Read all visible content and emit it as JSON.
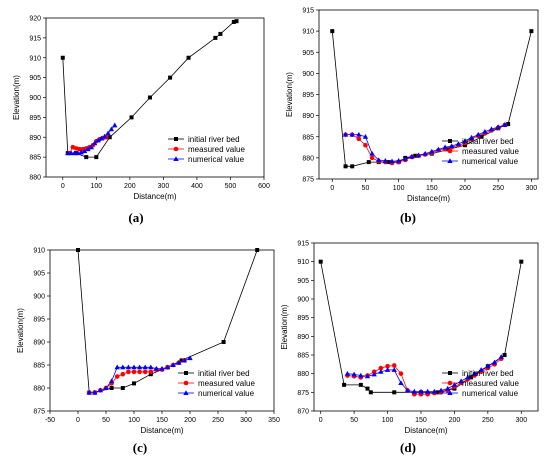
{
  "chart_data": [
    {
      "type": "line",
      "panel_label": "(a)",
      "xlabel": "Distance(m)",
      "ylabel": "Elevation(m)",
      "xlim": [
        -50,
        600
      ],
      "ylim": [
        880,
        920
      ],
      "xticks": [
        0,
        100,
        200,
        300,
        400,
        500,
        600
      ],
      "yticks": [
        880,
        885,
        890,
        895,
        900,
        905,
        910,
        915,
        920
      ],
      "legend_position": "bottom-right",
      "series": [
        {
          "name": "initial river bed",
          "color": "#000000",
          "marker": "square",
          "x": [
            0,
            15,
            40,
            70,
            100,
            140,
            205,
            260,
            320,
            375,
            455,
            470,
            510,
            518
          ],
          "y": [
            910,
            886,
            886,
            885,
            885,
            890,
            895,
            900,
            905,
            910,
            915,
            916,
            919,
            919.2
          ]
        },
        {
          "name": "measured value",
          "color": "#ff0000",
          "marker": "circle",
          "x": [
            20,
            30,
            40,
            50,
            60,
            70,
            80,
            90,
            100,
            110,
            120,
            130
          ],
          "y": [
            886,
            887.5,
            887.2,
            887,
            887,
            887.2,
            887.5,
            888,
            889,
            889.5,
            889.8,
            890
          ]
        },
        {
          "name": "numerical value",
          "color": "#0000ff",
          "marker": "triangle",
          "x": [
            15,
            25,
            35,
            45,
            55,
            65,
            75,
            85,
            95,
            105,
            115,
            125,
            135,
            145,
            155
          ],
          "y": [
            886,
            886,
            886,
            886,
            886.2,
            886.5,
            887,
            887.5,
            888.5,
            889.2,
            889.7,
            890.2,
            891,
            892,
            893
          ]
        }
      ]
    },
    {
      "type": "line",
      "panel_label": "(b)",
      "xlabel": "Distance(m)",
      "ylabel": "Elevation(m)",
      "xlim": [
        -20,
        310
      ],
      "ylim": [
        875,
        915
      ],
      "xticks": [
        0,
        50,
        100,
        150,
        200,
        250,
        300
      ],
      "yticks": [
        875,
        880,
        885,
        890,
        895,
        900,
        905,
        910,
        915
      ],
      "legend_position": "bottom-right",
      "series": [
        {
          "name": "initial river bed",
          "color": "#000000",
          "marker": "square",
          "x": [
            0,
            20,
            30,
            55,
            70,
            85,
            100,
            110,
            125,
            150,
            175,
            200,
            225,
            250,
            265,
            300
          ],
          "y": [
            910,
            878,
            878,
            879,
            879,
            879,
            879,
            880,
            880.5,
            881,
            882,
            883,
            885,
            887,
            888,
            910
          ]
        },
        {
          "name": "measured value",
          "color": "#ff0000",
          "marker": "circle",
          "x": [
            20,
            30,
            40,
            50,
            60,
            70,
            80,
            90,
            100,
            110,
            120,
            130,
            140,
            150,
            160,
            170,
            180,
            190,
            200,
            210,
            220,
            230,
            240,
            250,
            260
          ],
          "y": [
            885.5,
            885.5,
            884.5,
            883,
            880,
            879.2,
            879,
            878.8,
            879,
            879.5,
            880.2,
            880.5,
            880.8,
            881.2,
            881.8,
            882.2,
            882.5,
            883,
            883.5,
            884.5,
            885.2,
            885.8,
            886.5,
            887.2,
            887.8
          ]
        },
        {
          "name": "numerical value",
          "color": "#0000ff",
          "marker": "triangle",
          "x": [
            20,
            30,
            40,
            50,
            60,
            70,
            80,
            90,
            100,
            110,
            120,
            130,
            140,
            150,
            160,
            170,
            180,
            190,
            200,
            210,
            220,
            230,
            240,
            250,
            260
          ],
          "y": [
            885.5,
            885.5,
            885.5,
            885,
            881,
            879.5,
            879.3,
            879.2,
            879.3,
            879.8,
            880.3,
            880.6,
            881,
            881.5,
            882,
            882.5,
            882.8,
            883.3,
            884,
            884.8,
            885.5,
            886.2,
            886.8,
            887.3,
            887.8
          ]
        }
      ]
    },
    {
      "type": "line",
      "panel_label": "(c)",
      "xlabel": "Distance(m)",
      "ylabel": "Elevation(m)",
      "xlim": [
        -50,
        350
      ],
      "ylim": [
        875,
        910
      ],
      "xticks": [
        -50,
        0,
        50,
        100,
        150,
        200,
        250,
        300,
        350
      ],
      "yticks": [
        875,
        880,
        885,
        890,
        895,
        900,
        905,
        910
      ],
      "legend_position": "bottom-right",
      "series": [
        {
          "name": "initial river bed",
          "color": "#000000",
          "marker": "square",
          "x": [
            0,
            20,
            30,
            60,
            80,
            100,
            130,
            160,
            185,
            260,
            320
          ],
          "y": [
            910,
            879,
            879,
            880,
            880,
            881,
            883,
            884.5,
            886,
            890,
            910
          ]
        },
        {
          "name": "measured value",
          "color": "#ff0000",
          "marker": "circle",
          "x": [
            20,
            30,
            40,
            50,
            60,
            70,
            80,
            90,
            100,
            110,
            120,
            130,
            140,
            150,
            160,
            170,
            180,
            190
          ],
          "y": [
            879,
            879,
            879.5,
            880,
            881,
            882.5,
            883,
            883.5,
            883.5,
            883.5,
            883.5,
            883.5,
            884,
            884,
            884.5,
            885,
            885.5,
            886
          ]
        },
        {
          "name": "numerical value",
          "color": "#0000ff",
          "marker": "triangle",
          "x": [
            20,
            30,
            40,
            50,
            60,
            70,
            80,
            90,
            100,
            110,
            120,
            130,
            140,
            150,
            160,
            170,
            180,
            190,
            200
          ],
          "y": [
            879,
            879,
            879.5,
            880,
            881.5,
            884.5,
            884.5,
            884.5,
            884.5,
            884.5,
            884.5,
            884.5,
            884.2,
            884.2,
            884.5,
            885,
            885.5,
            886,
            886.5
          ]
        }
      ]
    },
    {
      "type": "line",
      "panel_label": "(d)",
      "xlabel": "Distance(m)",
      "ylabel": "Elevation(m)",
      "xlim": [
        -10,
        325
      ],
      "ylim": [
        870,
        915
      ],
      "xticks": [
        0,
        50,
        100,
        150,
        200,
        250,
        300
      ],
      "yticks": [
        870,
        875,
        880,
        885,
        890,
        895,
        900,
        905,
        910,
        915
      ],
      "legend_position": "bottom-right",
      "series": [
        {
          "name": "initial river bed",
          "color": "#000000",
          "marker": "square",
          "x": [
            0,
            35,
            60,
            70,
            75,
            110,
            150,
            175,
            200,
            225,
            250,
            275,
            300
          ],
          "y": [
            910,
            877,
            877,
            876,
            875,
            875,
            875,
            875,
            876,
            879,
            882,
            885,
            910
          ]
        },
        {
          "name": "measured value",
          "color": "#ff0000",
          "marker": "circle",
          "x": [
            40,
            50,
            60,
            70,
            80,
            90,
            100,
            110,
            120,
            130,
            140,
            150,
            160,
            170,
            180,
            190,
            200,
            210,
            220,
            230,
            240,
            250,
            260,
            270
          ],
          "y": [
            879.5,
            879.3,
            879,
            879.5,
            880.5,
            881.5,
            882,
            882.2,
            880,
            875.5,
            874.5,
            874.5,
            874.5,
            874.8,
            875,
            875.5,
            876.5,
            877.5,
            878.5,
            879.5,
            880.5,
            881.5,
            882.5,
            884
          ]
        },
        {
          "name": "numerical value",
          "color": "#0000ff",
          "marker": "triangle",
          "x": [
            40,
            50,
            60,
            70,
            80,
            90,
            100,
            110,
            120,
            130,
            140,
            150,
            160,
            170,
            180,
            190,
            200,
            210,
            220,
            230,
            240,
            250,
            260,
            270
          ],
          "y": [
            880,
            879.8,
            879.5,
            879.3,
            879.8,
            880.5,
            881,
            881,
            877.5,
            875.5,
            875.2,
            875.2,
            875.2,
            875.2,
            875.5,
            876,
            877,
            878,
            879,
            880,
            881,
            882,
            883,
            884.5
          ]
        }
      ]
    }
  ]
}
